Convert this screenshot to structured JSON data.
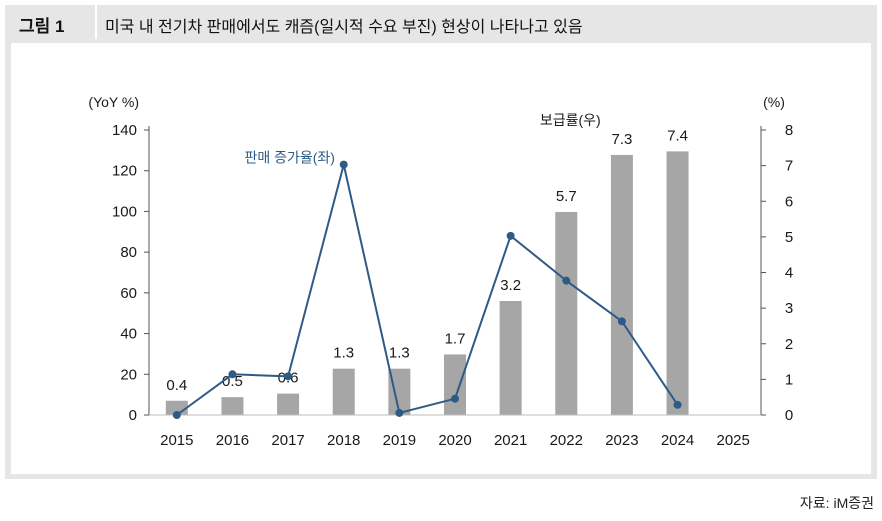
{
  "header": {
    "figure_label": "그림 1",
    "title": "미국 내 전기차 판매에서도 캐즘(일시적 수요 부진) 현상이 나타나고 있음"
  },
  "source": "자료: iM증권",
  "colors": {
    "bar": "#a6a6a6",
    "line": "#2e5a86",
    "frame": "#e6e6e6",
    "axis": "#555555"
  },
  "chart_data": {
    "type": "bar+line",
    "categories": [
      "2015",
      "2016",
      "2017",
      "2018",
      "2019",
      "2020",
      "2021",
      "2022",
      "2023",
      "2024",
      "2025"
    ],
    "left_axis": {
      "unit_label": "(YoY %)",
      "ylim": [
        0,
        140
      ],
      "ticks": [
        0,
        20,
        40,
        60,
        80,
        100,
        120,
        140
      ]
    },
    "right_axis": {
      "unit_label": "(%)",
      "ylim": [
        0,
        8
      ],
      "ticks": [
        0,
        1,
        2,
        3,
        4,
        5,
        6,
        7,
        8
      ]
    },
    "bar_series": {
      "name": "보급률(우)",
      "axis": "right",
      "values": [
        0.4,
        0.5,
        0.6,
        1.3,
        1.3,
        1.7,
        3.2,
        5.7,
        7.3,
        7.4,
        null
      ],
      "labels": [
        "0.4",
        "0.5",
        "0.6",
        "1.3",
        "1.3",
        "1.7",
        "3.2",
        "5.7",
        "7.3",
        "7.4",
        ""
      ]
    },
    "line_series": {
      "name": "판매 증가율(좌)",
      "axis": "left",
      "values": [
        0,
        20,
        19,
        123,
        1,
        8,
        88,
        66,
        46,
        5,
        null
      ]
    }
  }
}
